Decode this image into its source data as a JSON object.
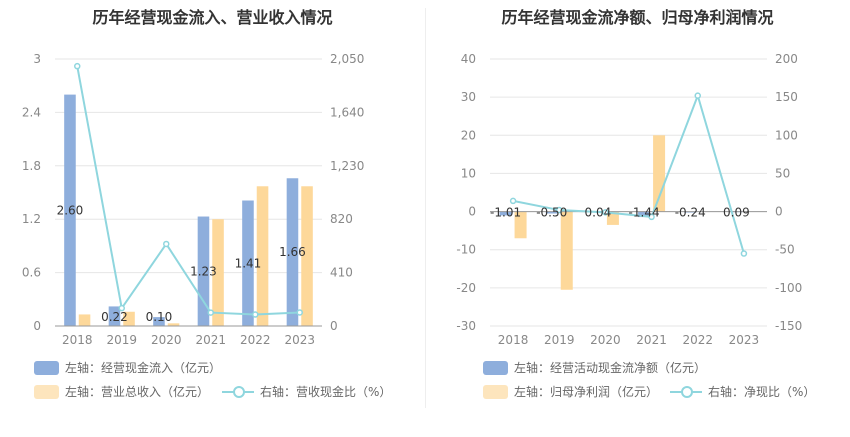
{
  "chart_data": [
    {
      "type": "bar",
      "title": "历年经营现金流入、营业收入情况",
      "categories": [
        "2018",
        "2019",
        "2020",
        "2021",
        "2022",
        "2023"
      ],
      "y_left": {
        "min": 0,
        "max": 3,
        "ticks": [
          "0",
          "0.6",
          "1.2",
          "1.8",
          "2.4",
          "3"
        ]
      },
      "y_right": {
        "min": 0,
        "max": 2050,
        "ticks": [
          "0",
          "410",
          "820",
          "1,230",
          "1,640",
          "2,050"
        ]
      },
      "series": [
        {
          "name": "左轴：经营现金流入（亿元）",
          "type": "bar",
          "axis": "left",
          "color": "#8eaedc",
          "values": [
            2.6,
            0.22,
            0.1,
            1.23,
            1.41,
            1.66
          ],
          "labels": [
            "2.60",
            "0.22",
            "0.10",
            "1.23",
            "1.41",
            "1.66"
          ]
        },
        {
          "name": "左轴：营业总收入（亿元）",
          "type": "bar",
          "axis": "left",
          "color": "#fdd89a",
          "values": [
            0.13,
            0.16,
            0.03,
            1.2,
            1.57,
            1.57
          ]
        },
        {
          "name": "右轴：营收现金比（%）",
          "type": "line",
          "axis": "right",
          "color": "#8fd6de",
          "values": [
            1995,
            137,
            630,
            103,
            88,
            104
          ]
        }
      ]
    },
    {
      "type": "bar",
      "title": "历年经营现金流净额、归母净利润情况",
      "categories": [
        "2018",
        "2019",
        "2020",
        "2021",
        "2022",
        "2023"
      ],
      "y_left": {
        "min": -30,
        "max": 40,
        "ticks": [
          "-30",
          "-20",
          "-10",
          "0",
          "10",
          "20",
          "30",
          "40"
        ]
      },
      "y_right": {
        "min": -150,
        "max": 200,
        "ticks": [
          "-150",
          "-100",
          "-50",
          "0",
          "50",
          "100",
          "150",
          "200"
        ]
      },
      "series": [
        {
          "name": "左轴：经营活动现金流净额（亿元）",
          "type": "bar",
          "axis": "left",
          "color": "#8eaedc",
          "values": [
            -1.01,
            -0.5,
            0.04,
            -1.44,
            -0.24,
            0.09
          ],
          "labels": [
            "-1.01",
            "-0.50",
            "0.04",
            "-1.44",
            "-0.24",
            "0.09"
          ]
        },
        {
          "name": "左轴：归母净利润（亿元）",
          "type": "bar",
          "axis": "left",
          "color": "#fdd89a",
          "values": [
            -7.0,
            -20.5,
            -3.5,
            20.0,
            0,
            0
          ]
        },
        {
          "name": "右轴：净现比（%）",
          "type": "line",
          "axis": "right",
          "color": "#8fd6de",
          "values": [
            14,
            2,
            -1,
            -7,
            152,
            -55
          ]
        }
      ]
    }
  ]
}
